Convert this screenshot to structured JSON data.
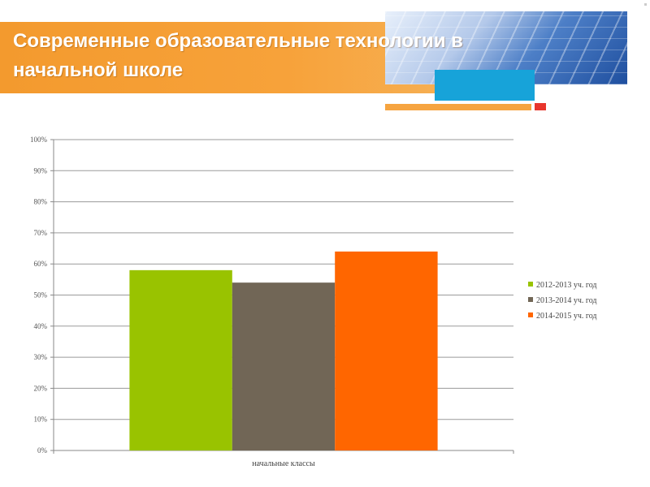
{
  "slide": {
    "title": "Современные образовательные технологии в начальной школе"
  },
  "colors": {
    "banner": "#f7a23a",
    "accent_blue": "#17a3d9",
    "accent_red": "#e8352c"
  },
  "chart_data": {
    "type": "bar",
    "title": "",
    "xlabel": "",
    "ylabel": "",
    "categories": [
      "начальные классы"
    ],
    "series": [
      {
        "name": "2012-2013 уч. год",
        "values": [
          58
        ],
        "color": "#99c300"
      },
      {
        "name": "2013-2014 уч. год",
        "values": [
          54
        ],
        "color": "#716656"
      },
      {
        "name": "2014-2015 уч. год",
        "values": [
          64
        ],
        "color": "#ff6600"
      }
    ],
    "ylim": [
      0,
      100
    ],
    "yticks": [
      "0%",
      "10%",
      "20%",
      "30%",
      "40%",
      "50%",
      "60%",
      "70%",
      "80%",
      "90%",
      "100%"
    ],
    "grid": true,
    "legend_position": "right"
  }
}
